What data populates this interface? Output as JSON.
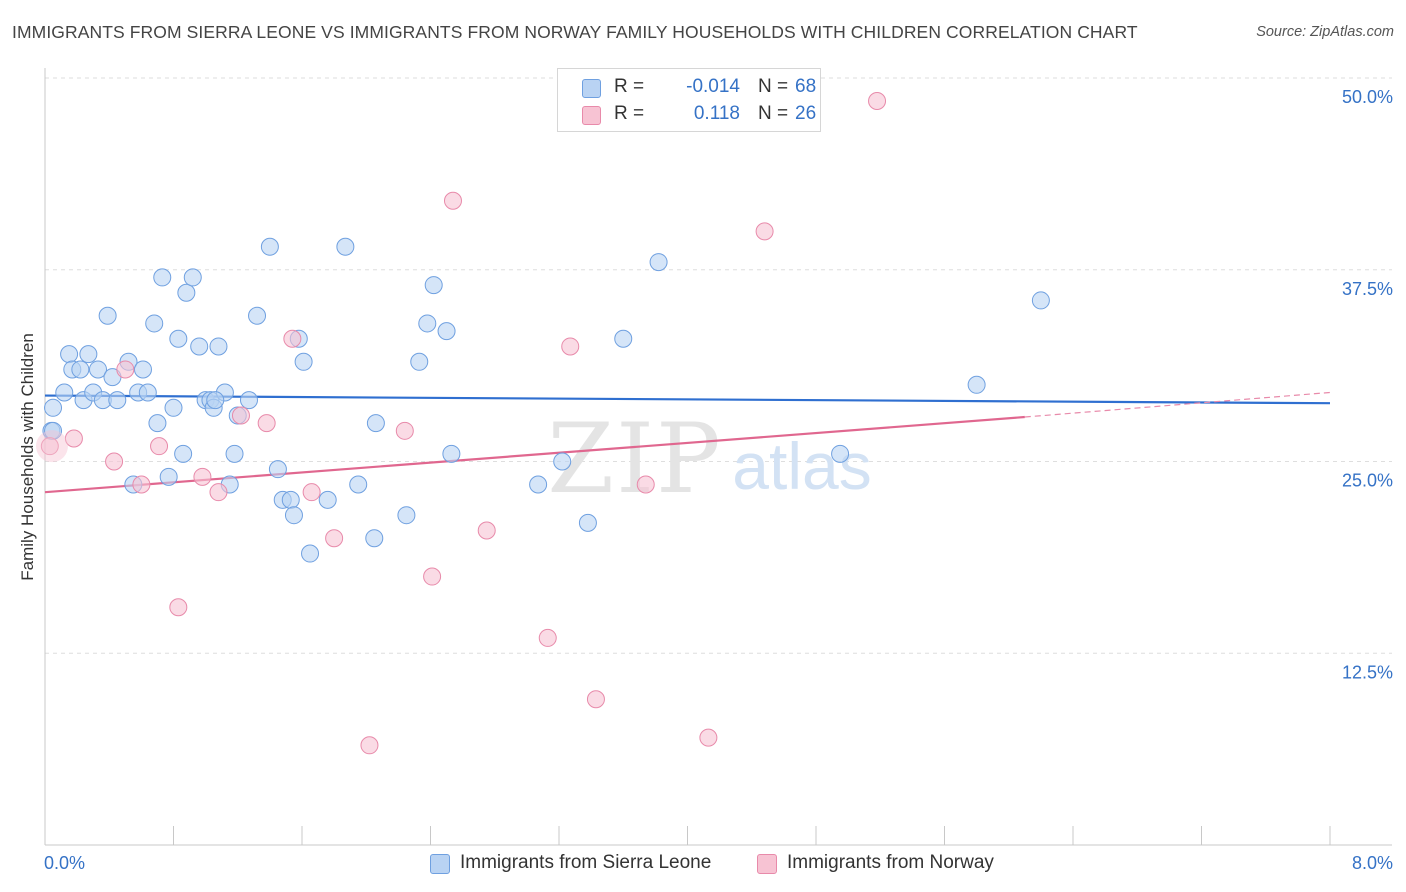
{
  "title": "IMMIGRANTS FROM SIERRA LEONE VS IMMIGRANTS FROM NORWAY FAMILY HOUSEHOLDS WITH CHILDREN CORRELATION CHART",
  "source": "Source: ZipAtlas.com",
  "watermark": {
    "zip": "ZIP",
    "atlas": "atlas"
  },
  "legend": {
    "rows": [
      {
        "r_label": "R =",
        "r_value": "-0.014",
        "n_label": "N =",
        "n_value": "68"
      },
      {
        "r_label": "R =",
        "r_value": "0.118",
        "n_label": "N =",
        "n_value": "26"
      }
    ]
  },
  "chart_data": {
    "type": "scatter",
    "ylabel": "Family Households with Children",
    "xlim": [
      0,
      8
    ],
    "ylim": [
      0,
      52
    ],
    "x_tick_labels": [
      "0.0%",
      "8.0%"
    ],
    "y_ticks": [
      12.5,
      25.0,
      37.5,
      50.0
    ],
    "y_tick_labels": [
      "12.5%",
      "25.0%",
      "37.5%",
      "50.0%"
    ],
    "grid": "horizontal dashed",
    "legend_position": "bottom",
    "series": [
      {
        "name": "Immigrants from Sierra Leone",
        "color": "#6fa0e0",
        "fill": "#b9d3f3",
        "trend": {
          "x": [
            0,
            8
          ],
          "y": [
            29.3,
            28.8
          ]
        },
        "points": [
          [
            0.04,
            27.0
          ],
          [
            0.05,
            28.5
          ],
          [
            0.12,
            29.5
          ],
          [
            0.15,
            32.0
          ],
          [
            0.17,
            31.0
          ],
          [
            0.22,
            31.0
          ],
          [
            0.24,
            29.0
          ],
          [
            0.27,
            32.0
          ],
          [
            0.3,
            29.5
          ],
          [
            0.33,
            31.0
          ],
          [
            0.36,
            29.0
          ],
          [
            0.39,
            34.5
          ],
          [
            0.42,
            30.5
          ],
          [
            0.45,
            29.0
          ],
          [
            0.52,
            31.5
          ],
          [
            0.55,
            23.5
          ],
          [
            0.58,
            29.5
          ],
          [
            0.61,
            31.0
          ],
          [
            0.64,
            29.5
          ],
          [
            0.68,
            34.0
          ],
          [
            0.7,
            27.5
          ],
          [
            0.73,
            37.0
          ],
          [
            0.77,
            24.0
          ],
          [
            0.8,
            28.5
          ],
          [
            0.83,
            33.0
          ],
          [
            0.86,
            25.5
          ],
          [
            0.88,
            36.0
          ],
          [
            0.92,
            37.0
          ],
          [
            0.96,
            32.5
          ],
          [
            1.0,
            29.0
          ],
          [
            1.03,
            29.0
          ],
          [
            1.05,
            28.5
          ],
          [
            1.08,
            32.5
          ],
          [
            1.12,
            29.5
          ],
          [
            1.15,
            23.5
          ],
          [
            1.18,
            25.5
          ],
          [
            1.2,
            28.0
          ],
          [
            1.27,
            29.0
          ],
          [
            1.32,
            34.5
          ],
          [
            1.4,
            39.0
          ],
          [
            1.45,
            24.5
          ],
          [
            1.48,
            22.5
          ],
          [
            1.53,
            22.5
          ],
          [
            1.55,
            21.5
          ],
          [
            1.58,
            33.0
          ],
          [
            1.61,
            31.5
          ],
          [
            1.65,
            19.0
          ],
          [
            1.76,
            22.5
          ],
          [
            1.87,
            39.0
          ],
          [
            1.95,
            23.5
          ],
          [
            2.05,
            20.0
          ],
          [
            2.06,
            27.5
          ],
          [
            2.25,
            21.5
          ],
          [
            2.33,
            31.5
          ],
          [
            2.38,
            34.0
          ],
          [
            2.42,
            36.5
          ],
          [
            2.5,
            33.5
          ],
          [
            2.53,
            25.5
          ],
          [
            3.07,
            23.5
          ],
          [
            3.22,
            25.0
          ],
          [
            3.38,
            21.0
          ],
          [
            3.6,
            33.0
          ],
          [
            3.82,
            38.0
          ],
          [
            4.95,
            25.5
          ],
          [
            5.8,
            30.0
          ],
          [
            6.2,
            35.5
          ],
          [
            0.05,
            27.0
          ],
          [
            1.06,
            29.0
          ]
        ]
      },
      {
        "name": "Immigrants from Norway",
        "color": "#e88aaa",
        "fill": "#f7c3d3",
        "trend": {
          "x": [
            0,
            6.1
          ],
          "y": [
            23.0,
            27.9
          ]
        },
        "trend_extension": {
          "x": [
            6.1,
            8
          ],
          "y": [
            27.9,
            29.5
          ]
        },
        "points": [
          [
            0.03,
            26.0
          ],
          [
            0.18,
            26.5
          ],
          [
            0.43,
            25.0
          ],
          [
            0.5,
            31.0
          ],
          [
            0.6,
            23.5
          ],
          [
            0.71,
            26.0
          ],
          [
            0.83,
            15.5
          ],
          [
            0.98,
            24.0
          ],
          [
            1.08,
            23.0
          ],
          [
            1.22,
            28.0
          ],
          [
            1.38,
            27.5
          ],
          [
            1.54,
            33.0
          ],
          [
            1.66,
            23.0
          ],
          [
            1.8,
            20.0
          ],
          [
            2.02,
            6.5
          ],
          [
            2.24,
            27.0
          ],
          [
            2.41,
            17.5
          ],
          [
            2.54,
            42.0
          ],
          [
            2.75,
            20.5
          ],
          [
            3.13,
            13.5
          ],
          [
            3.27,
            32.5
          ],
          [
            3.43,
            9.5
          ],
          [
            3.74,
            23.5
          ],
          [
            4.13,
            7.0
          ],
          [
            4.48,
            40.0
          ],
          [
            5.18,
            48.5
          ]
        ]
      }
    ]
  }
}
